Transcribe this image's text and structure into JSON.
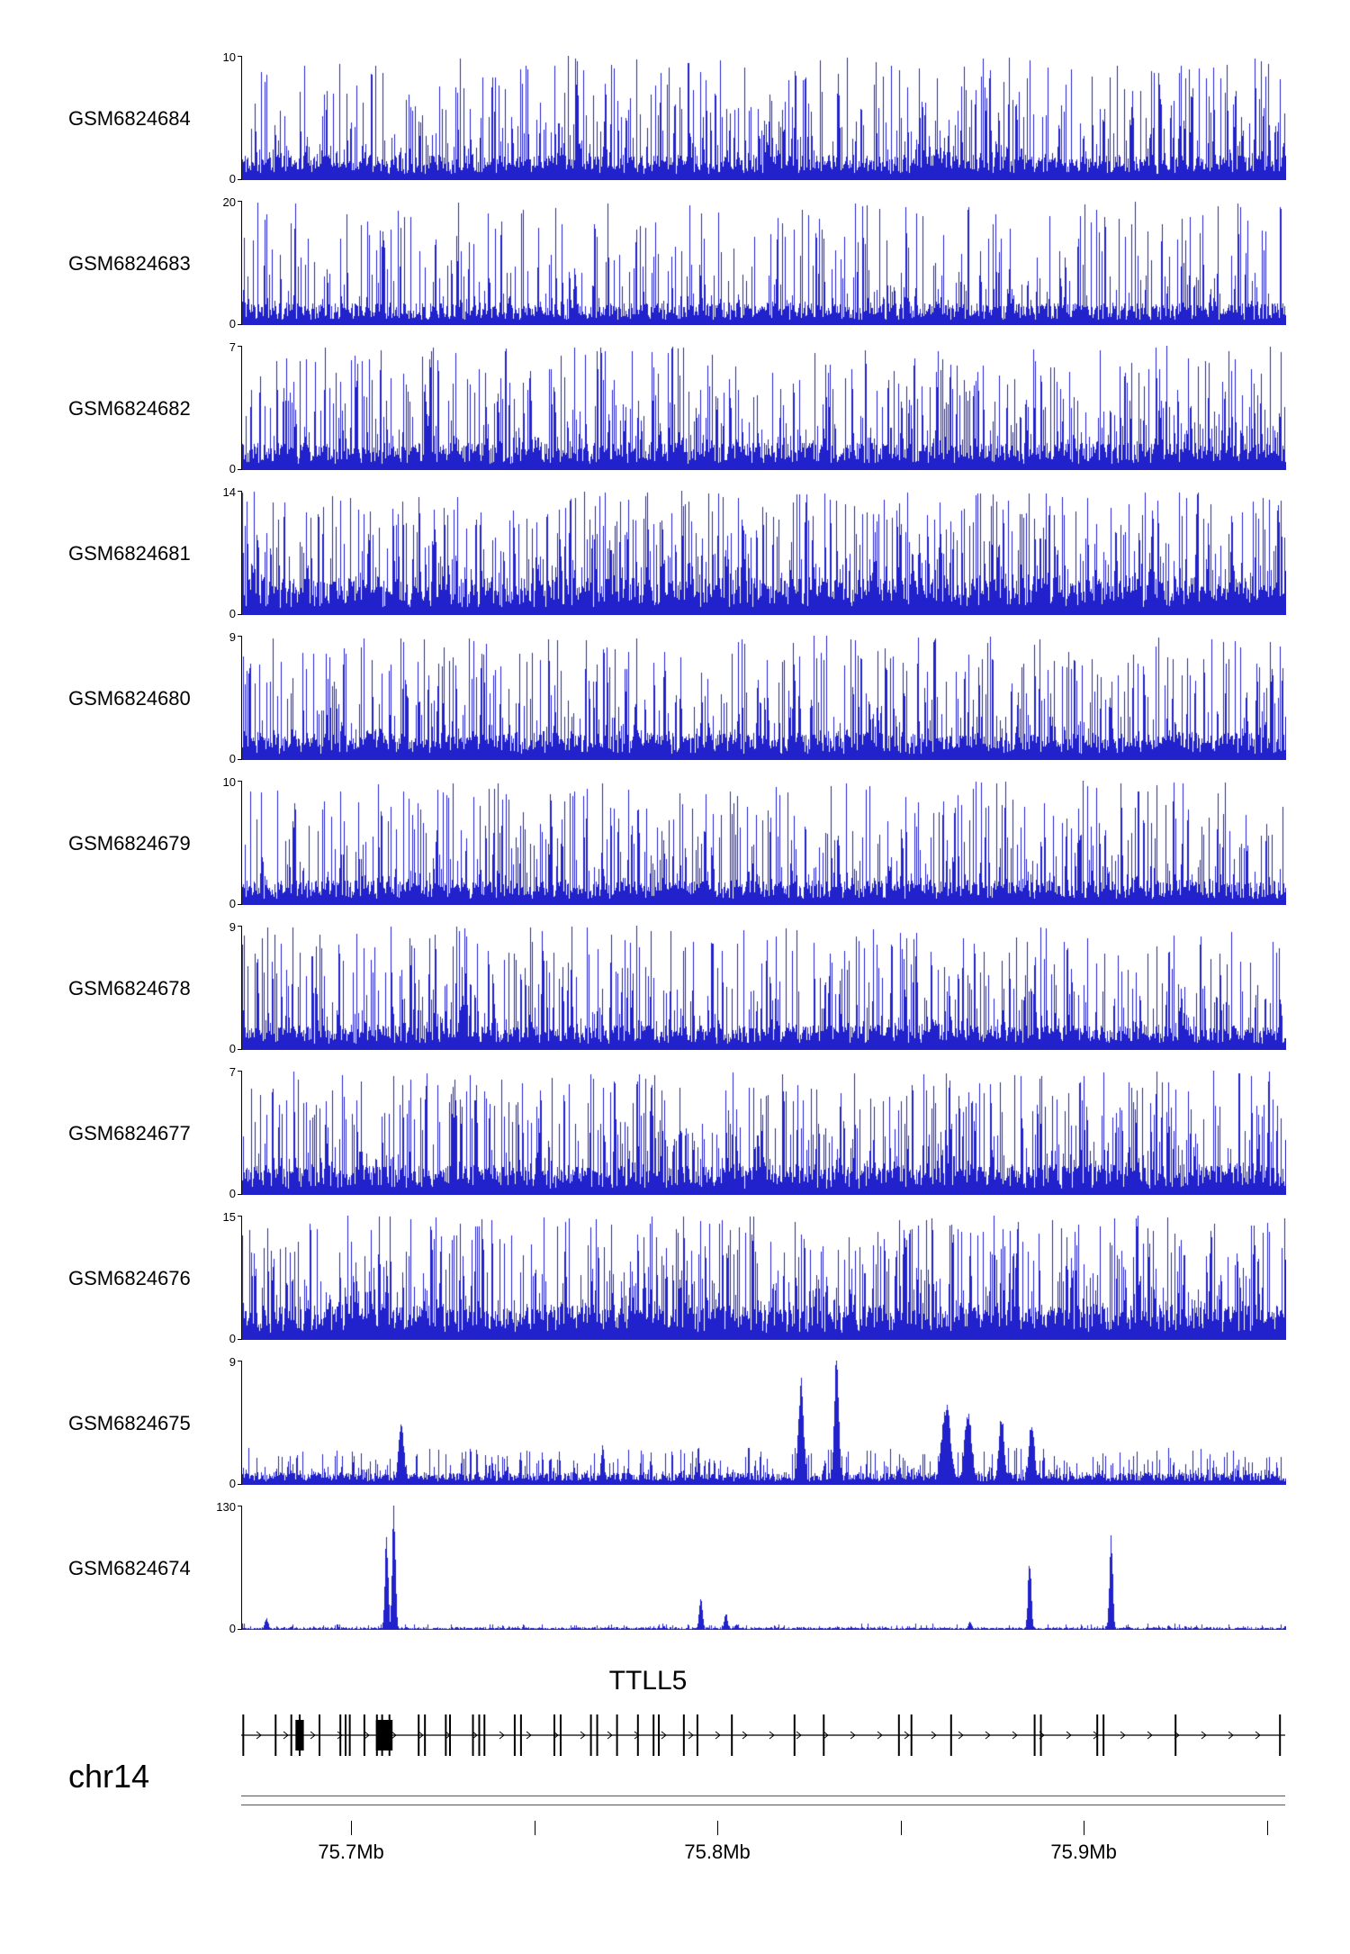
{
  "figure": {
    "background": "#ffffff"
  },
  "chart_data": {
    "type": "genome-coverage-tracks",
    "chromosome": "chr14",
    "gene": {
      "name": "TTLL5",
      "strand": "+",
      "exons_f": [
        0.002,
        0.033,
        0.048,
        0.056,
        0.075,
        0.095,
        0.1,
        0.104,
        0.118,
        0.13,
        0.135,
        0.142,
        0.17,
        0.176,
        0.196,
        0.2,
        0.222,
        0.228,
        0.233,
        0.262,
        0.268,
        0.3,
        0.306,
        0.335,
        0.341,
        0.36,
        0.38,
        0.395,
        0.4,
        0.424,
        0.437,
        0.47,
        0.53,
        0.558,
        0.63,
        0.642,
        0.68,
        0.76,
        0.766,
        0.82,
        0.826,
        0.895,
        0.995
      ],
      "thick_blocks_f": [
        {
          "f": 0.056,
          "w": 0.008
        },
        {
          "f": 0.137,
          "w": 0.016
        }
      ]
    },
    "x_range_mb": [
      75.67,
      75.955
    ],
    "x_ticks": [
      {
        "value": 75.7,
        "label": "75.7Mb"
      },
      {
        "value": 75.75,
        "label": ""
      },
      {
        "value": 75.8,
        "label": "75.8Mb"
      },
      {
        "value": 75.85,
        "label": ""
      },
      {
        "value": 75.9,
        "label": "75.9Mb"
      },
      {
        "value": 75.95,
        "label": ""
      }
    ],
    "track_color": "#2222cc",
    "y_zero_label": "0",
    "tracks": [
      {
        "label": "GSM6824684",
        "ymax": 10,
        "seed": 101,
        "amp": 1.0,
        "exp": 3.2,
        "base": [
          0.05,
          0.2
        ]
      },
      {
        "label": "GSM6824683",
        "ymax": 20,
        "seed": 102,
        "amp": 1.0,
        "exp": 4.5,
        "base": [
          0.04,
          0.18
        ]
      },
      {
        "label": "GSM6824682",
        "ymax": 7,
        "seed": 103,
        "amp": 1.0,
        "exp": 2.8,
        "base": [
          0.05,
          0.22
        ]
      },
      {
        "label": "GSM6824681",
        "ymax": 14,
        "seed": 104,
        "amp": 1.0,
        "exp": 2.2,
        "base": [
          0.06,
          0.3
        ]
      },
      {
        "label": "GSM6824680",
        "ymax": 9,
        "seed": 105,
        "amp": 1.0,
        "exp": 3.0,
        "base": [
          0.05,
          0.22
        ]
      },
      {
        "label": "GSM6824679",
        "ymax": 10,
        "seed": 106,
        "amp": 1.0,
        "exp": 3.2,
        "base": [
          0.05,
          0.2
        ]
      },
      {
        "label": "GSM6824678",
        "ymax": 9,
        "seed": 107,
        "amp": 1.0,
        "exp": 3.2,
        "base": [
          0.05,
          0.2
        ]
      },
      {
        "label": "GSM6824677",
        "ymax": 7,
        "seed": 108,
        "amp": 1.0,
        "exp": 2.6,
        "base": [
          0.05,
          0.24
        ]
      },
      {
        "label": "GSM6824676",
        "ymax": 15,
        "seed": 109,
        "amp": 1.0,
        "exp": 2.4,
        "base": [
          0.06,
          0.28
        ]
      },
      {
        "label": "GSM6824675",
        "ymax": 9,
        "seed": 110,
        "amp": 0.3,
        "exp": 4.0,
        "base": [
          0.03,
          0.1
        ],
        "peaks": [
          {
            "f": 0.152,
            "h": 0.5,
            "w": 3
          },
          {
            "f": 0.345,
            "h": 0.3,
            "w": 2
          },
          {
            "f": 0.535,
            "h": 0.8,
            "w": 3
          },
          {
            "f": 0.569,
            "h": 1.0,
            "w": 2.5
          },
          {
            "f": 0.674,
            "h": 0.62,
            "w": 5
          },
          {
            "f": 0.695,
            "h": 0.58,
            "w": 4
          },
          {
            "f": 0.727,
            "h": 0.55,
            "w": 3
          },
          {
            "f": 0.756,
            "h": 0.5,
            "w": 3
          }
        ]
      },
      {
        "label": "GSM6824674",
        "ymax": 130,
        "seed": 111,
        "amp": 0.05,
        "exp": 6.0,
        "base": [
          0.006,
          0.02
        ],
        "peaks": [
          {
            "f": 0.023,
            "h": 0.09,
            "w": 2
          },
          {
            "f": 0.138,
            "h": 0.72,
            "w": 1.8
          },
          {
            "f": 0.145,
            "h": 0.97,
            "w": 1.8
          },
          {
            "f": 0.439,
            "h": 0.27,
            "w": 1.8
          },
          {
            "f": 0.463,
            "h": 0.13,
            "w": 1.8
          },
          {
            "f": 0.697,
            "h": 0.06,
            "w": 2
          },
          {
            "f": 0.754,
            "h": 0.55,
            "w": 1.8
          },
          {
            "f": 0.832,
            "h": 0.72,
            "w": 1.8
          }
        ]
      }
    ]
  }
}
